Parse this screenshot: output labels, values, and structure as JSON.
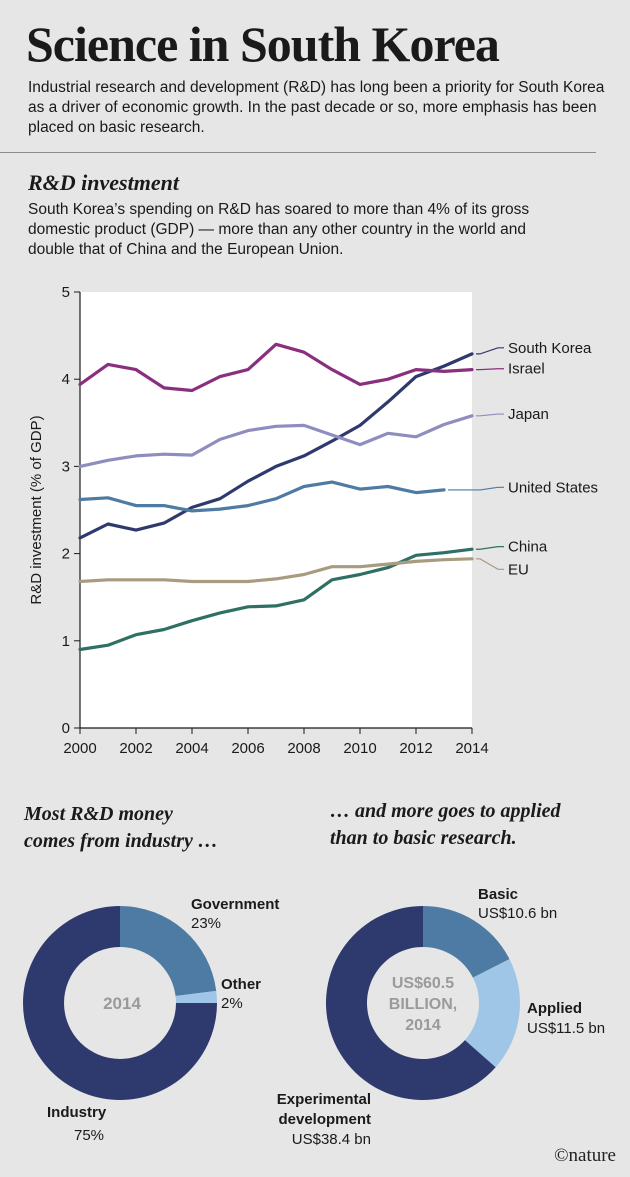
{
  "header": {
    "title": "Science in South Korea",
    "intro": "Industrial research and development (R&D) has long been a priority for South Korea as a driver of economic growth. In the past decade or so, more emphasis has been placed on basic research."
  },
  "section": {
    "title": "R&D investment",
    "description": "South Korea’s spending on R&D has soared to more than 4% of its gross domestic product (GDP) — more than any other country in the world and double that of China and the European Union."
  },
  "colors": {
    "south_korea": "#2e3a6e",
    "israel": "#8a2f7f",
    "japan": "#8f8dbf",
    "united_states": "#4e7ba3",
    "china": "#2e7063",
    "eu": "#a89c80",
    "industry": "#2e3a6e",
    "government": "#4e7ba3",
    "other": "#9fc6e6",
    "basic": "#4e7ba3",
    "applied": "#9fc6e6",
    "experimental": "#2e3a6e"
  },
  "chart_data": [
    {
      "type": "line",
      "title": "R&D investment",
      "xlabel": "",
      "ylabel": "R&D investment (% of GDP)",
      "xlim": [
        2000,
        2014
      ],
      "ylim": [
        0,
        5
      ],
      "x_ticks": [
        "2000",
        "2002",
        "2004",
        "2006",
        "2008",
        "2010",
        "2012",
        "2014"
      ],
      "y_ticks": [
        "0",
        "1",
        "2",
        "3",
        "4",
        "5"
      ],
      "grid": false,
      "series": [
        {
          "name": "South Korea",
          "key": "south_korea",
          "label_value": 4.36,
          "x": [
            2000,
            2001,
            2002,
            2003,
            2004,
            2005,
            2006,
            2007,
            2008,
            2009,
            2010,
            2011,
            2012,
            2013,
            2014
          ],
          "values": [
            2.18,
            2.34,
            2.27,
            2.35,
            2.53,
            2.63,
            2.83,
            3.0,
            3.12,
            3.29,
            3.47,
            3.74,
            4.03,
            4.15,
            4.29
          ]
        },
        {
          "name": "Israel",
          "key": "israel",
          "label_value": 4.12,
          "x": [
            2000,
            2001,
            2002,
            2003,
            2004,
            2005,
            2006,
            2007,
            2008,
            2009,
            2010,
            2011,
            2012,
            2013,
            2014
          ],
          "values": [
            3.94,
            4.17,
            4.11,
            3.9,
            3.87,
            4.03,
            4.11,
            4.4,
            4.31,
            4.11,
            3.94,
            4.0,
            4.11,
            4.09,
            4.11
          ]
        },
        {
          "name": "Japan",
          "key": "japan",
          "label_value": 3.6,
          "x": [
            2000,
            2001,
            2002,
            2003,
            2004,
            2005,
            2006,
            2007,
            2008,
            2009,
            2010,
            2011,
            2012,
            2013,
            2014
          ],
          "values": [
            3.0,
            3.07,
            3.12,
            3.14,
            3.13,
            3.31,
            3.41,
            3.46,
            3.47,
            3.36,
            3.25,
            3.38,
            3.34,
            3.48,
            3.58
          ]
        },
        {
          "name": "United States",
          "key": "united_states",
          "label_value": 2.76,
          "x": [
            2000,
            2001,
            2002,
            2003,
            2004,
            2005,
            2006,
            2007,
            2008,
            2009,
            2010,
            2011,
            2012,
            2013
          ],
          "values": [
            2.62,
            2.64,
            2.55,
            2.55,
            2.49,
            2.51,
            2.55,
            2.63,
            2.77,
            2.82,
            2.74,
            2.77,
            2.7,
            2.73
          ]
        },
        {
          "name": "China",
          "key": "china",
          "label_value": 2.08,
          "x": [
            2000,
            2001,
            2002,
            2003,
            2004,
            2005,
            2006,
            2007,
            2008,
            2009,
            2010,
            2011,
            2012,
            2013,
            2014
          ],
          "values": [
            0.9,
            0.95,
            1.07,
            1.13,
            1.23,
            1.32,
            1.39,
            1.4,
            1.47,
            1.7,
            1.76,
            1.84,
            1.98,
            2.01,
            2.05
          ]
        },
        {
          "name": "EU",
          "key": "eu",
          "label_value": 1.82,
          "x": [
            2000,
            2001,
            2002,
            2003,
            2004,
            2005,
            2006,
            2007,
            2008,
            2009,
            2010,
            2011,
            2012,
            2013,
            2014
          ],
          "values": [
            1.68,
            1.7,
            1.7,
            1.7,
            1.68,
            1.68,
            1.68,
            1.71,
            1.76,
            1.85,
            1.85,
            1.88,
            1.91,
            1.93,
            1.94
          ]
        }
      ]
    },
    {
      "type": "pie",
      "title": "Most R&D money comes from industry …",
      "title_lines": [
        "Most R&D money",
        "comes from industry …"
      ],
      "center_label": "2014",
      "slices": [
        {
          "name": "Government",
          "key": "government",
          "value": 23,
          "label": "23%"
        },
        {
          "name": "Other",
          "key": "other",
          "value": 2,
          "label": "2%"
        },
        {
          "name": "Industry",
          "key": "industry",
          "value": 75,
          "label": "75%"
        }
      ]
    },
    {
      "type": "pie",
      "title": "… and more goes to applied than to basic research.",
      "title_lines": [
        "… and more goes to applied",
        "than to basic research."
      ],
      "center_label_lines": [
        "US$60.5",
        "BILLION,",
        "2014"
      ],
      "slices": [
        {
          "name": "Basic",
          "key": "basic",
          "value": 10.6,
          "label": "US$10.6 bn",
          "name_lines": [
            "Basic"
          ]
        },
        {
          "name": "Applied",
          "key": "applied",
          "value": 11.5,
          "label": "US$11.5 bn",
          "name_lines": [
            "Applied"
          ]
        },
        {
          "name": "Experimental development",
          "key": "experimental",
          "value": 38.4,
          "label": "US$38.4 bn",
          "name_lines": [
            "Experimental",
            "development"
          ]
        }
      ]
    }
  ],
  "credit": "©nature"
}
